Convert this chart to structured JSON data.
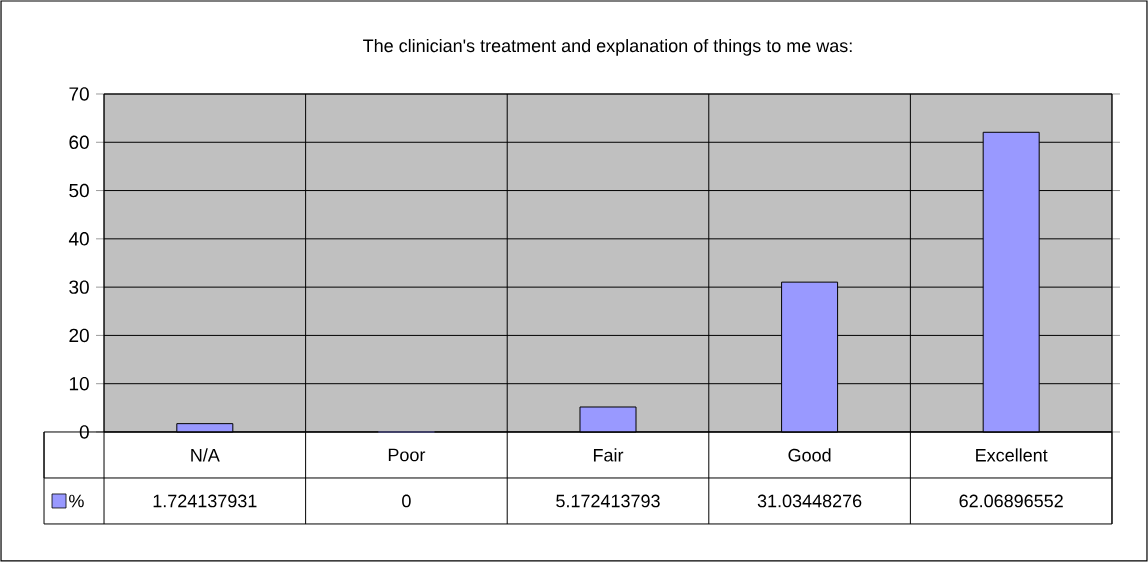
{
  "chart_data": {
    "type": "bar",
    "title": "The clinician's treatment and explanation of things to me was:",
    "categories": [
      "N/A",
      "Poor",
      "Fair",
      "Good",
      "Excellent"
    ],
    "series": [
      {
        "name": "%",
        "color": "#9999ff",
        "values": [
          1.724137931,
          0,
          5.172413793,
          31.03448276,
          62.06896552
        ]
      }
    ],
    "ylim": [
      0,
      70
    ],
    "yticks": [
      0,
      10,
      20,
      30,
      40,
      50,
      60,
      70
    ],
    "grid": true,
    "data_labels": true
  }
}
